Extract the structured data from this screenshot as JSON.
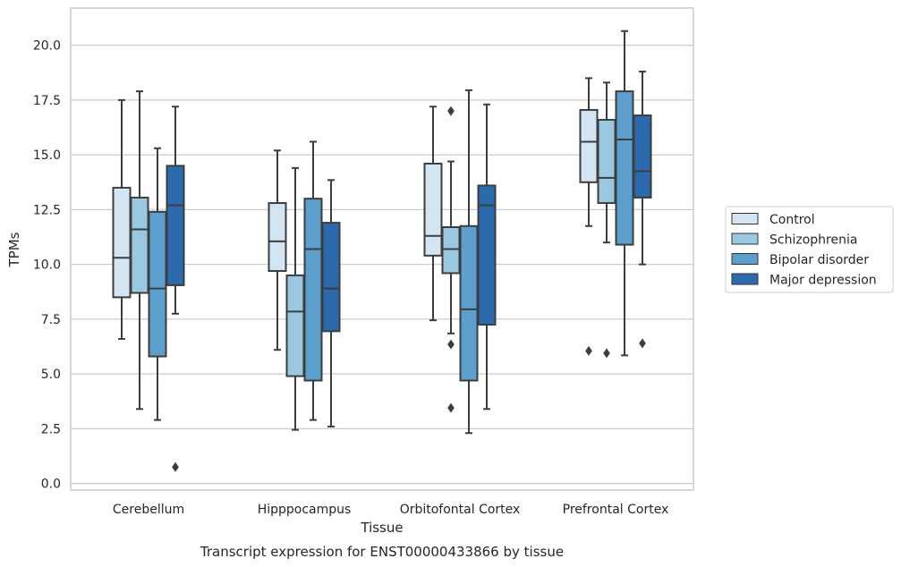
{
  "chart_data": {
    "type": "box",
    "title": "Transcript expression for ENST00000433866 by tissue",
    "xlabel": "Tissue",
    "ylabel": "TPMs",
    "ylim": [
      -0.3,
      21.7
    ],
    "yticks": [
      0.0,
      2.5,
      5.0,
      7.5,
      10.0,
      12.5,
      15.0,
      17.5,
      20.0
    ],
    "ytick_labels": [
      "0.0",
      "2.5",
      "5.0",
      "7.5",
      "10.0",
      "12.5",
      "15.0",
      "17.5",
      "20.0"
    ],
    "grid": "horizontal",
    "legend_position": "right",
    "categories": [
      "Cerebellum",
      "Hipppocampus",
      "Orbitofontal Cortex",
      "Prefrontal Cortex"
    ],
    "series": [
      {
        "name": "Control",
        "color": "#d3e4f3",
        "boxes": [
          {
            "whislo": 6.6,
            "q1": 8.5,
            "med": 10.3,
            "q3": 13.5,
            "whishi": 17.5,
            "fliers": []
          },
          {
            "whislo": 6.1,
            "q1": 9.7,
            "med": 11.05,
            "q3": 12.8,
            "whishi": 15.2,
            "fliers": []
          },
          {
            "whislo": 7.45,
            "q1": 10.4,
            "med": 11.3,
            "q3": 14.6,
            "whishi": 17.2,
            "fliers": []
          },
          {
            "whislo": 11.75,
            "q1": 13.75,
            "med": 15.6,
            "q3": 17.05,
            "whishi": 18.5,
            "fliers": [
              6.05
            ]
          }
        ]
      },
      {
        "name": "Schizophrenia",
        "color": "#9ac8e0",
        "boxes": [
          {
            "whislo": 3.4,
            "q1": 8.7,
            "med": 11.6,
            "q3": 13.05,
            "whishi": 17.9,
            "fliers": []
          },
          {
            "whislo": 2.45,
            "q1": 4.9,
            "med": 7.85,
            "q3": 9.5,
            "whishi": 14.4,
            "fliers": []
          },
          {
            "whislo": 6.85,
            "q1": 9.6,
            "med": 10.7,
            "q3": 11.7,
            "whishi": 14.7,
            "fliers": [
              17.0,
              6.35,
              3.45
            ]
          },
          {
            "whislo": 11.0,
            "q1": 12.8,
            "med": 13.95,
            "q3": 16.6,
            "whishi": 18.3,
            "fliers": [
              5.95
            ]
          }
        ]
      },
      {
        "name": "Bipolar disorder",
        "color": "#5c9fcd",
        "boxes": [
          {
            "whislo": 2.9,
            "q1": 5.8,
            "med": 8.9,
            "q3": 12.4,
            "whishi": 15.3,
            "fliers": []
          },
          {
            "whislo": 2.9,
            "q1": 4.7,
            "med": 10.7,
            "q3": 13.0,
            "whishi": 15.6,
            "fliers": []
          },
          {
            "whislo": 2.3,
            "q1": 4.7,
            "med": 7.95,
            "q3": 11.75,
            "whishi": 17.95,
            "fliers": []
          },
          {
            "whislo": 5.85,
            "q1": 10.9,
            "med": 15.7,
            "q3": 17.9,
            "whishi": 20.65,
            "fliers": []
          }
        ]
      },
      {
        "name": "Major depression",
        "color": "#2a6aad",
        "boxes": [
          {
            "whislo": 7.75,
            "q1": 9.05,
            "med": 12.7,
            "q3": 14.5,
            "whishi": 17.2,
            "fliers": [
              0.75
            ]
          },
          {
            "whislo": 2.6,
            "q1": 6.95,
            "med": 8.9,
            "q3": 11.9,
            "whishi": 13.85,
            "fliers": []
          },
          {
            "whislo": 3.4,
            "q1": 7.25,
            "med": 12.7,
            "q3": 13.6,
            "whishi": 17.3,
            "fliers": []
          },
          {
            "whislo": 10.0,
            "q1": 13.05,
            "med": 14.25,
            "q3": 16.8,
            "whishi": 18.8,
            "fliers": [
              6.4
            ]
          }
        ]
      }
    ]
  }
}
